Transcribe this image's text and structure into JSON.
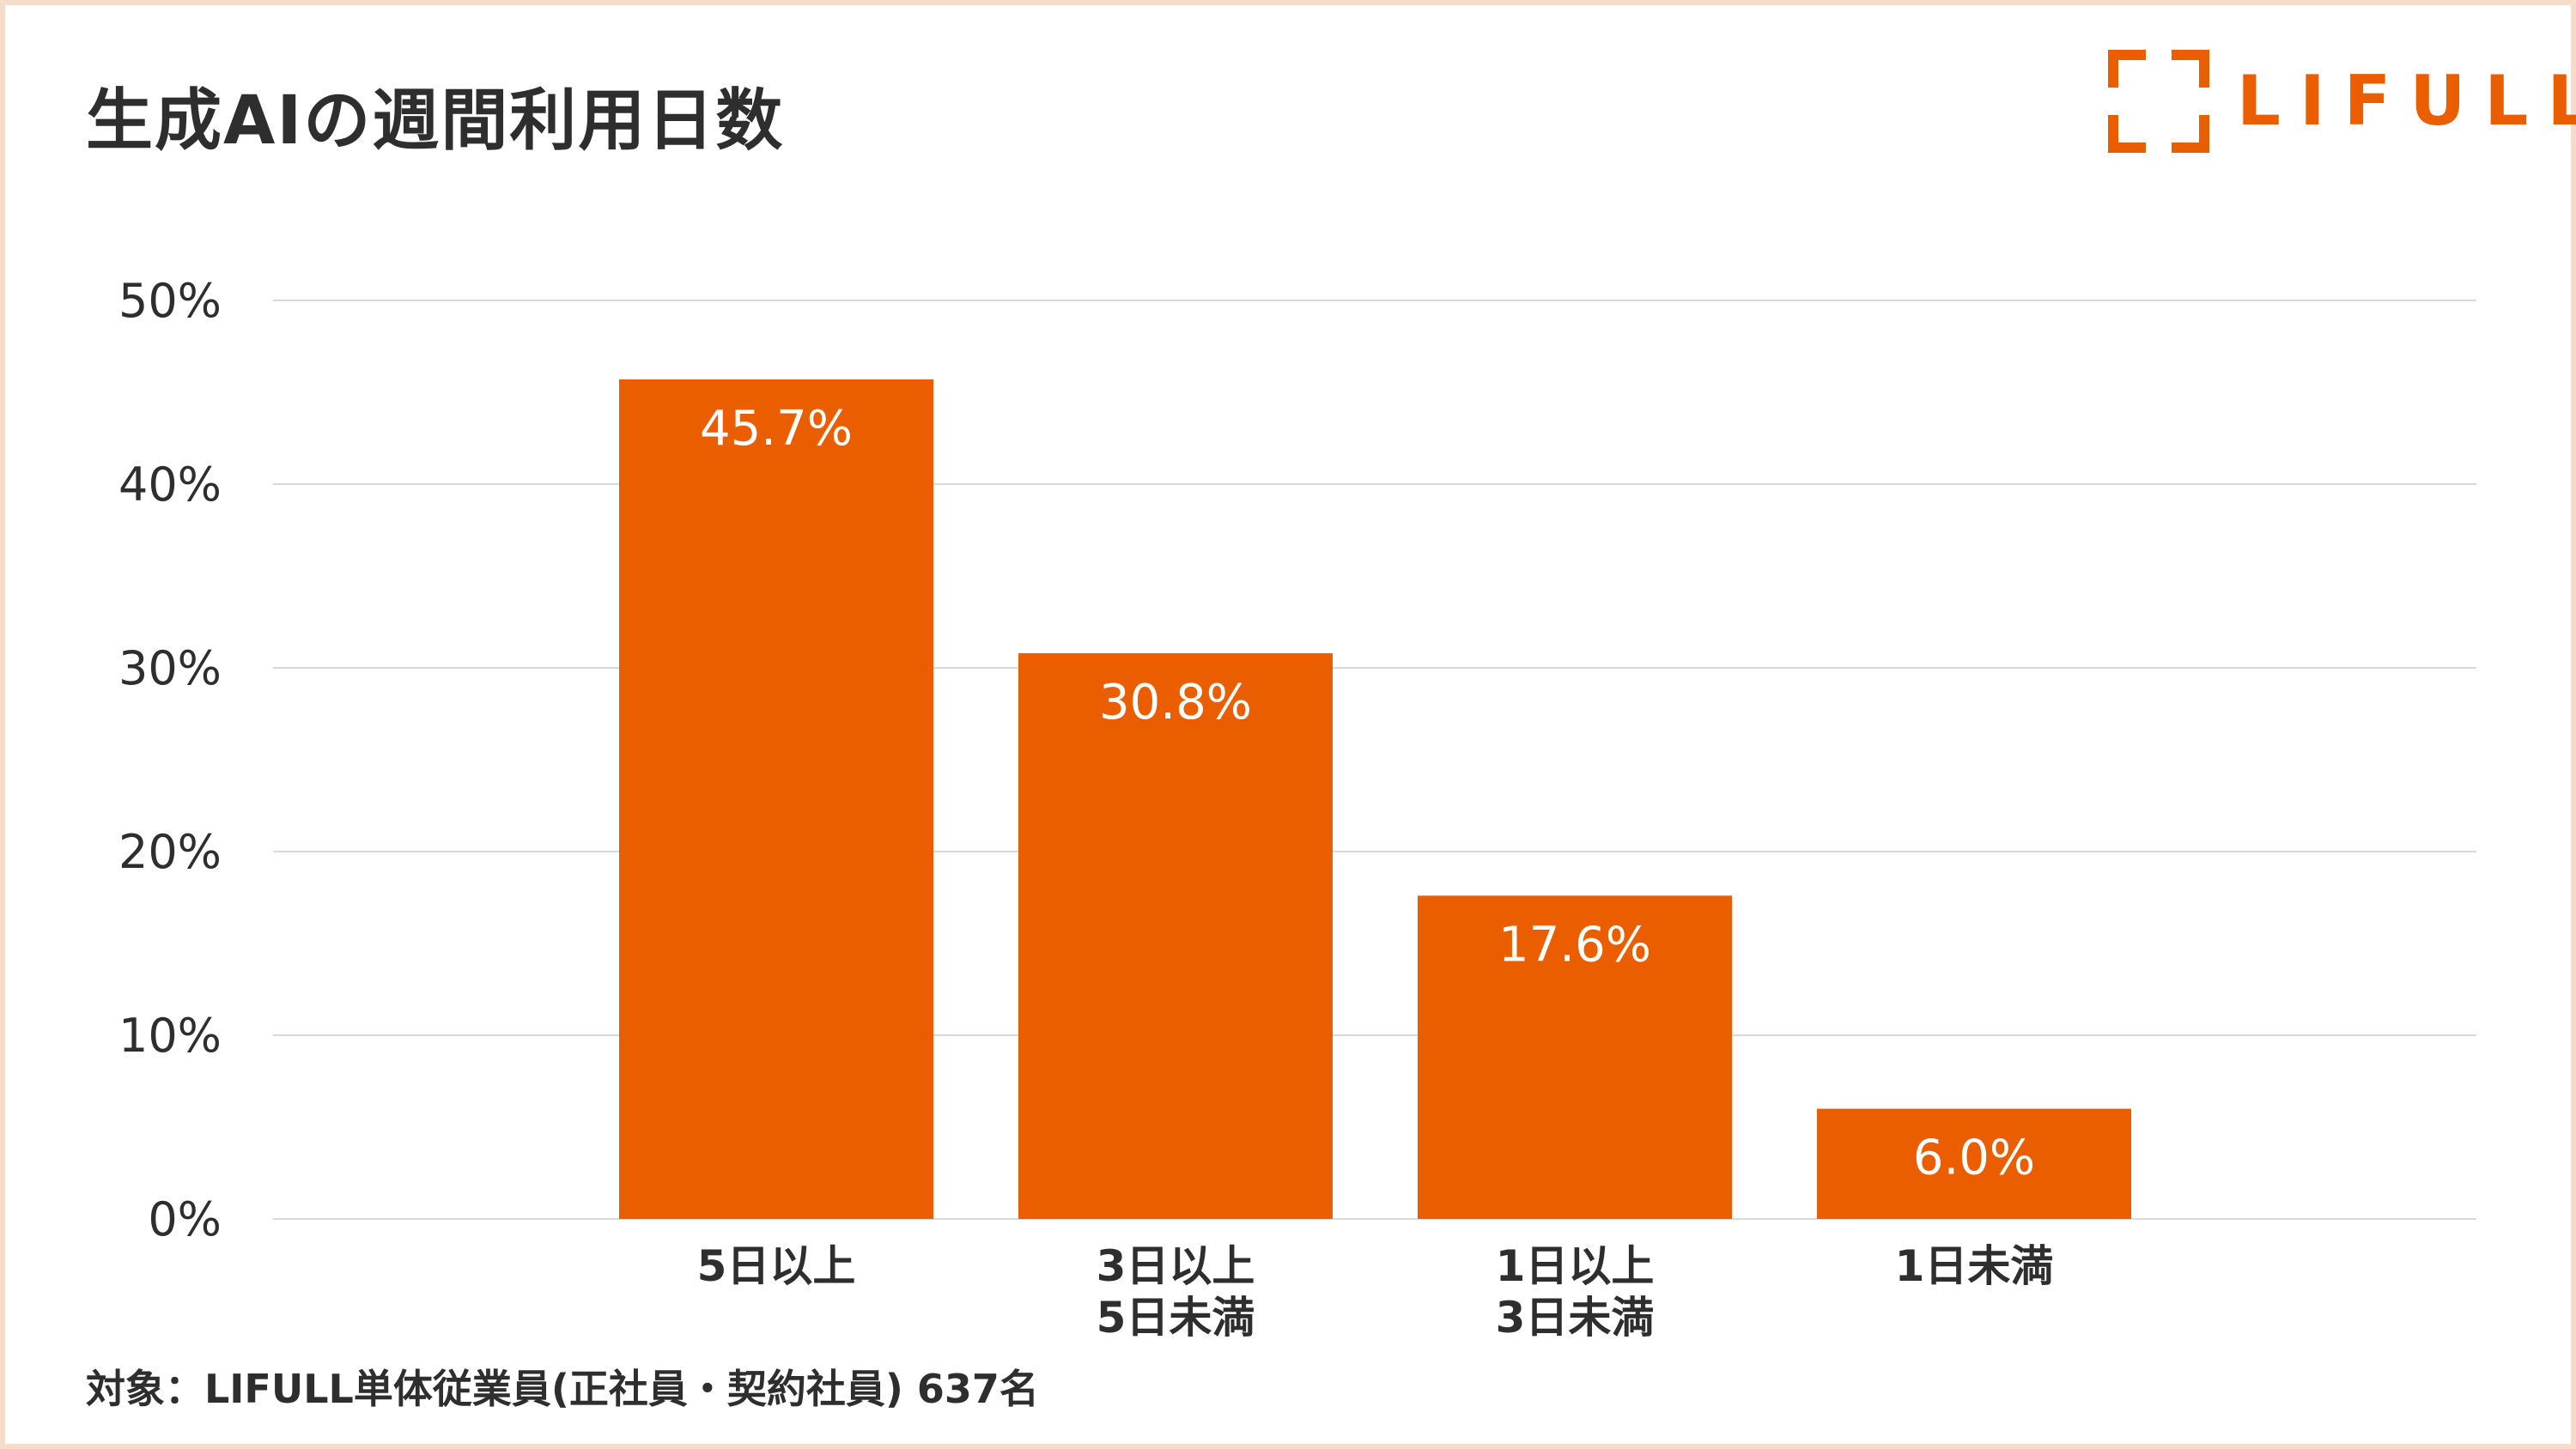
{
  "title": "生成AIの週間利用日数",
  "logo": {
    "text": "LIFULL",
    "color": "#eb5e00"
  },
  "footnote": "対象：LIFULL単体従業員(正社員・契約社員) 637名",
  "colors": {
    "bar": "#eb5e00",
    "grid": "#d9d9d9",
    "text": "#2e2e2e",
    "label": "#ffffff",
    "border": "#f6dccb"
  },
  "chart_data": {
    "type": "bar",
    "title": "生成AIの週間利用日数",
    "xlabel": "",
    "ylabel": "",
    "ylim": [
      0,
      50
    ],
    "y_ticks": [
      0,
      10,
      20,
      30,
      40,
      50
    ],
    "y_tick_labels": [
      "0%",
      "10%",
      "20%",
      "30%",
      "40%",
      "50%"
    ],
    "grid": true,
    "legend": "none",
    "categories": [
      [
        "5日以上"
      ],
      [
        "3日以上",
        "5日未満"
      ],
      [
        "1日以上",
        "3日未満"
      ],
      [
        "1日未満"
      ]
    ],
    "values": [
      45.7,
      30.8,
      17.6,
      6.0
    ],
    "data_labels": [
      "45.7%",
      "30.8%",
      "17.6%",
      "6.0%"
    ]
  }
}
